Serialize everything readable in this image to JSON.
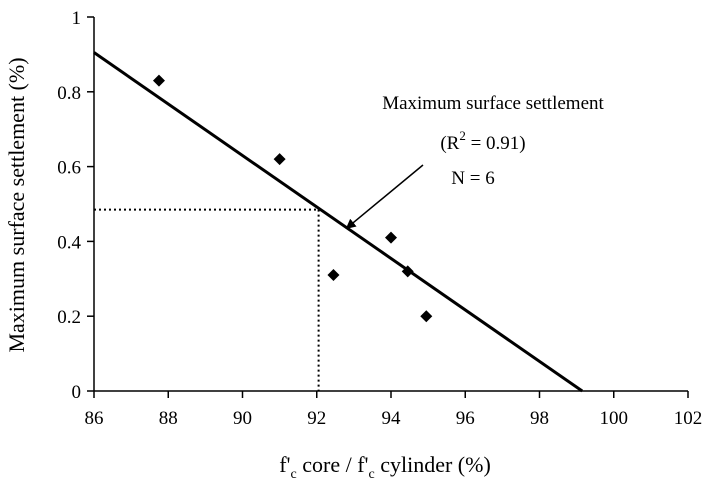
{
  "chart_data": {
    "type": "scatter",
    "xlabel": {
      "main": "f'",
      "sub": "c",
      "mid": " core / f'",
      "sub2": "c",
      "end": " cylinder (%)"
    },
    "ylabel": "Maximum surface settlement (%)",
    "xlim": [
      86,
      102
    ],
    "ylim": [
      0,
      1
    ],
    "xticks": [
      86,
      88,
      90,
      92,
      94,
      96,
      98,
      100,
      102
    ],
    "yticks": [
      0,
      0.2,
      0.4,
      0.6,
      0.8,
      1
    ],
    "xtick_labels": [
      "86",
      "88",
      "90",
      "92",
      "94",
      "96",
      "98",
      "100",
      "102"
    ],
    "ytick_labels": [
      "0",
      "0.2",
      "0.4",
      "0.6",
      "0.8",
      "1"
    ],
    "grid": false,
    "points": [
      {
        "x": 87.75,
        "y": 0.83
      },
      {
        "x": 91.0,
        "y": 0.62
      },
      {
        "x": 92.45,
        "y": 0.31
      },
      {
        "x": 94.0,
        "y": 0.41
      },
      {
        "x": 94.45,
        "y": 0.32
      },
      {
        "x": 94.95,
        "y": 0.2
      }
    ],
    "trendline": {
      "x": [
        86,
        99.15
      ],
      "y": [
        0.905,
        0
      ]
    },
    "reference_lines": {
      "x": 92.05,
      "y": 0.485
    },
    "annotation": {
      "title": "Maximum surface settlement",
      "r2_open": "(R",
      "r2_sup": "2",
      "r2_close": " = 0.91)",
      "n": "N = 6",
      "arrow_target": {
        "x": 92.8,
        "y": 0.435
      }
    }
  }
}
